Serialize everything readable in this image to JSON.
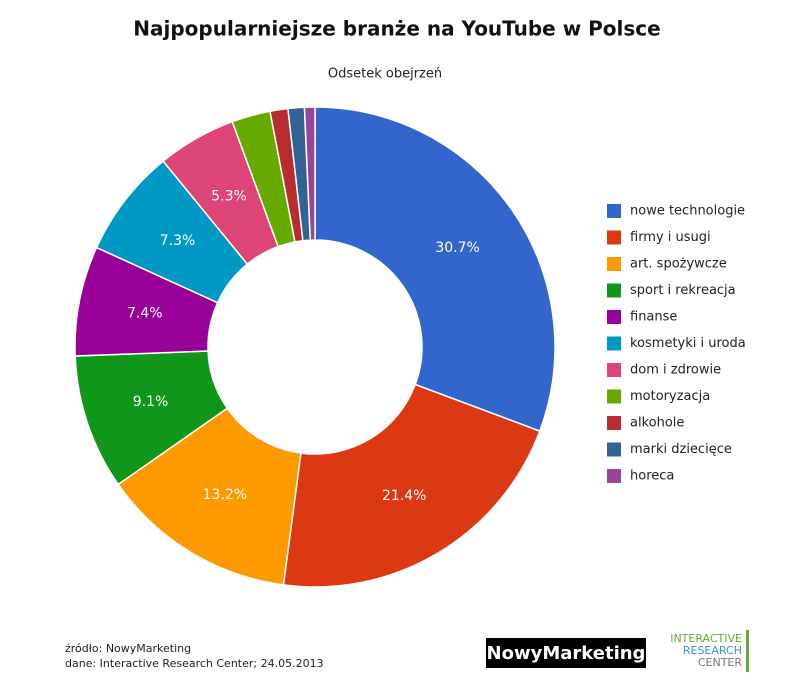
{
  "chart_data": {
    "type": "donut",
    "title": "Najpopularniejsze branże na YouTube w Polsce",
    "subtitle": "Odsetek obejrzeń",
    "categories": [
      "nowe technologie",
      "firmy i usugi",
      "art. spożywcze",
      "sport i rekreacja",
      "finanse",
      "kosmetyki i uroda",
      "dom i zdrowie",
      "motoryzacja",
      "alkohole",
      "marki dziecięce",
      "horeca"
    ],
    "values": [
      30.7,
      21.4,
      13.2,
      9.1,
      7.4,
      7.3,
      5.3,
      2.6,
      1.2,
      1.1,
      0.7
    ],
    "value_labels": [
      "30.7%",
      "21.4%",
      "13.2%",
      "9.1%",
      "7.4%",
      "7.3%",
      "5.3%",
      null,
      null,
      null,
      null
    ],
    "colors": [
      "#3366cc",
      "#dc3912",
      "#ff9900",
      "#109618",
      "#990099",
      "#0099c6",
      "#dd4477",
      "#66aa00",
      "#b82e2e",
      "#316395",
      "#994499"
    ],
    "legend": "right"
  },
  "footer": {
    "source": "źródło: NowyMarketing",
    "data": "dane: Interactive Research Center; 24.05.2013",
    "logo": "NowyMarketing",
    "logo2": [
      "INTERACTIVE",
      "RESEARCH",
      "CENTER"
    ]
  }
}
